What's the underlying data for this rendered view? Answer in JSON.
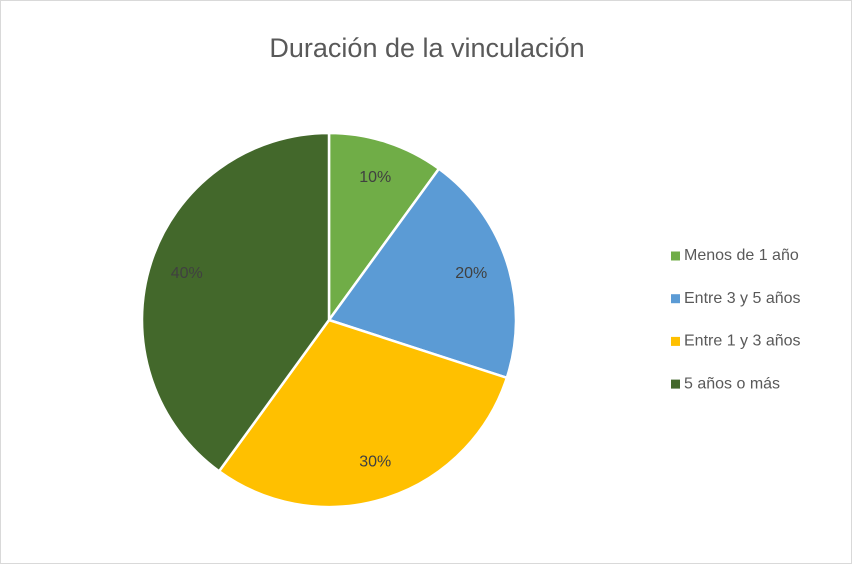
{
  "chart_data": {
    "type": "pie",
    "title": "Duración de la vinculación",
    "categories": [
      "Menos de 1 año",
      "Entre 3 y 5 años",
      "Entre 1 y 3 años",
      "5 años o más"
    ],
    "values": [
      10,
      20,
      30,
      40
    ],
    "value_labels": [
      "10%",
      "20%",
      "30%",
      "40%"
    ],
    "colors": [
      "#70ad47",
      "#5b9bd5",
      "#ffc000",
      "#43682b"
    ],
    "legend": "right"
  }
}
